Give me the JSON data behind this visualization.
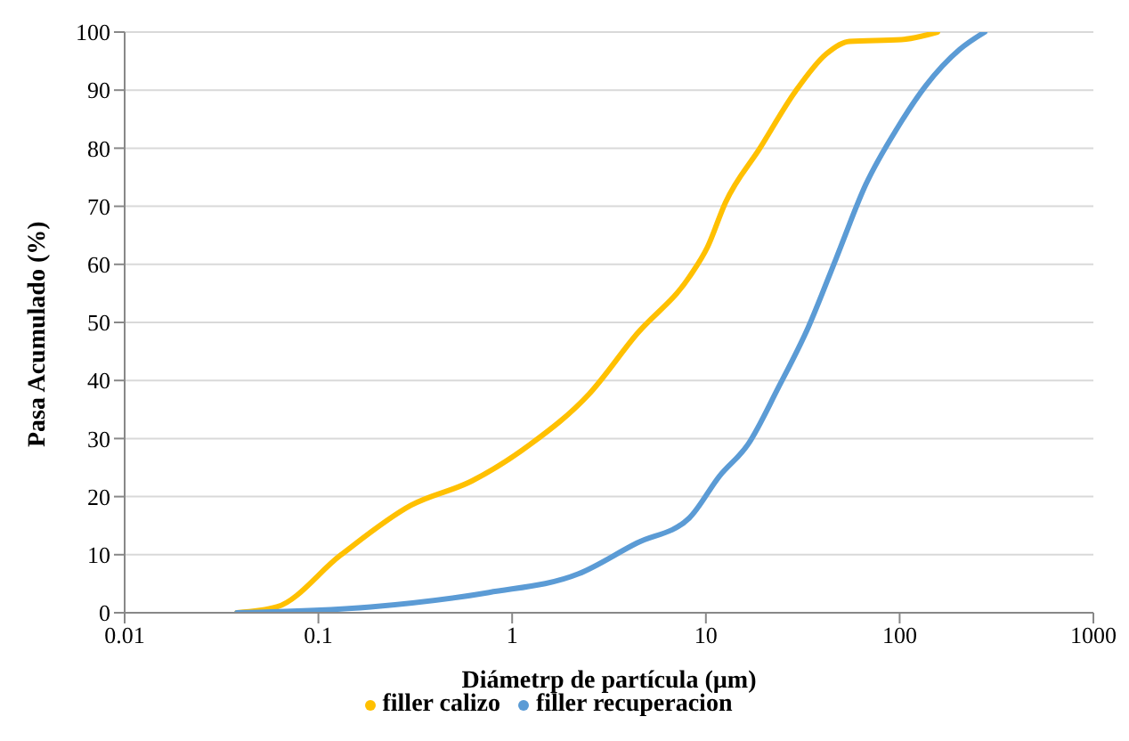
{
  "chart_data": {
    "type": "line",
    "xlabel": "Diámetrp de partícula (µm)",
    "ylabel": "Pasa Acumulado (%)",
    "log": "x",
    "xlim": [
      0.01,
      1000
    ],
    "xticks": [
      0.01,
      0.1,
      1,
      10,
      100,
      1000
    ],
    "ylim": [
      0,
      100
    ],
    "yticks": [
      0,
      10,
      20,
      30,
      40,
      50,
      60,
      70,
      80,
      90,
      100
    ],
    "grid": "y",
    "legend": "bottom",
    "marker": "none",
    "line_style": "solid",
    "series": [
      {
        "name": "filler calizo",
        "color": "#ffc000",
        "x": [
          0.038,
          0.061,
          0.13,
          0.3,
          0.62,
          1.24,
          2.5,
          4.4,
          8.2,
          10.2,
          12.6,
          19,
          29,
          41.7,
          55,
          102,
          157
        ],
        "values": [
          0,
          1,
          9.9,
          18.5,
          22.7,
          29,
          37.7,
          48,
          57.8,
          63,
          70.6,
          80,
          89.8,
          96.2,
          98.4,
          98.7,
          100
        ]
      },
      {
        "name": "filler recuperacion",
        "color": "#5b9bd5",
        "x": [
          0.038,
          0.186,
          0.76,
          2.2,
          4.4,
          8.2,
          11.8,
          16.5,
          23.6,
          33.6,
          47,
          67,
          97,
          136,
          204,
          275
        ],
        "values": [
          0,
          1,
          3.5,
          6.7,
          12,
          16.3,
          23.6,
          29,
          38.7,
          49,
          61,
          73.8,
          83.4,
          90.7,
          97,
          100
        ]
      }
    ]
  }
}
